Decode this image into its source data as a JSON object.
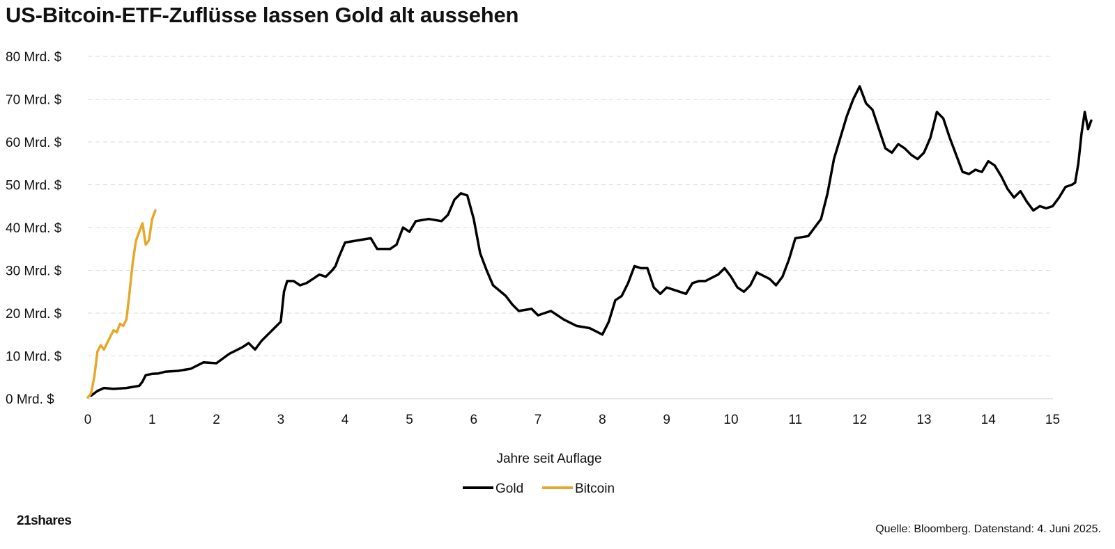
{
  "header": {
    "title": "US-Bitcoin-ETF-Zuflüsse lassen Gold alt aussehen"
  },
  "footer": {
    "logo_text": "21shares",
    "source": "Quelle: Bloomberg. Datenstand: 4. Juni 2025."
  },
  "chart_data": {
    "type": "line",
    "xlabel": "Jahre seit Auflage",
    "ylabel": "",
    "xlim": [
      0,
      15.4
    ],
    "ylim": [
      0,
      80
    ],
    "x_ticks": [
      0,
      1,
      2,
      3,
      4,
      5,
      6,
      7,
      8,
      9,
      10,
      11,
      12,
      13,
      14,
      15
    ],
    "y_ticks": [
      0,
      10,
      20,
      30,
      40,
      50,
      60,
      70,
      80
    ],
    "y_tick_labels": [
      "0 Mrd. $",
      "10 Mrd. $",
      "20 Mrd. $",
      "30 Mrd. $",
      "40 Mrd. $",
      "50 Mrd. $",
      "60 Mrd. $",
      "70 Mrd. $",
      "80 Mrd. $"
    ],
    "grid": "horizontal dashed",
    "legend_position": "bottom-center",
    "series": [
      {
        "name": "Gold",
        "color": "#000000",
        "points": [
          [
            0.05,
            0.7
          ],
          [
            0.15,
            1.8
          ],
          [
            0.25,
            2.5
          ],
          [
            0.4,
            2.3
          ],
          [
            0.6,
            2.5
          ],
          [
            0.8,
            3.0
          ],
          [
            0.85,
            4.0
          ],
          [
            0.9,
            5.5
          ],
          [
            1.0,
            5.8
          ],
          [
            1.1,
            5.9
          ],
          [
            1.2,
            6.3
          ],
          [
            1.4,
            6.5
          ],
          [
            1.6,
            7.0
          ],
          [
            1.8,
            8.5
          ],
          [
            2.0,
            8.3
          ],
          [
            2.2,
            10.5
          ],
          [
            2.4,
            12.0
          ],
          [
            2.5,
            13.0
          ],
          [
            2.6,
            11.5
          ],
          [
            2.7,
            13.5
          ],
          [
            2.8,
            15.0
          ],
          [
            2.9,
            16.5
          ],
          [
            3.0,
            18.0
          ],
          [
            3.05,
            25.0
          ],
          [
            3.1,
            27.5
          ],
          [
            3.2,
            27.5
          ],
          [
            3.3,
            26.5
          ],
          [
            3.4,
            27.0
          ],
          [
            3.5,
            28.0
          ],
          [
            3.6,
            29.0
          ],
          [
            3.7,
            28.5
          ],
          [
            3.8,
            30.0
          ],
          [
            3.85,
            31.0
          ],
          [
            3.9,
            33.0
          ],
          [
            4.0,
            36.5
          ],
          [
            4.2,
            37.0
          ],
          [
            4.4,
            37.5
          ],
          [
            4.5,
            35.0
          ],
          [
            4.7,
            35.0
          ],
          [
            4.8,
            36.0
          ],
          [
            4.9,
            40.0
          ],
          [
            5.0,
            39.0
          ],
          [
            5.1,
            41.5
          ],
          [
            5.3,
            42.0
          ],
          [
            5.5,
            41.5
          ],
          [
            5.6,
            43.0
          ],
          [
            5.7,
            46.5
          ],
          [
            5.8,
            48.0
          ],
          [
            5.9,
            47.5
          ],
          [
            6.0,
            42.0
          ],
          [
            6.1,
            34.0
          ],
          [
            6.2,
            30.0
          ],
          [
            6.3,
            26.5
          ],
          [
            6.5,
            24.0
          ],
          [
            6.6,
            22.0
          ],
          [
            6.7,
            20.5
          ],
          [
            6.9,
            21.0
          ],
          [
            7.0,
            19.5
          ],
          [
            7.2,
            20.5
          ],
          [
            7.4,
            18.5
          ],
          [
            7.6,
            17.0
          ],
          [
            7.8,
            16.5
          ],
          [
            8.0,
            15.0
          ],
          [
            8.1,
            18.0
          ],
          [
            8.2,
            23.0
          ],
          [
            8.3,
            24.0
          ],
          [
            8.4,
            27.0
          ],
          [
            8.5,
            31.0
          ],
          [
            8.6,
            30.5
          ],
          [
            8.7,
            30.5
          ],
          [
            8.8,
            26.0
          ],
          [
            8.9,
            24.5
          ],
          [
            9.0,
            26.0
          ],
          [
            9.1,
            25.5
          ],
          [
            9.3,
            24.5
          ],
          [
            9.4,
            27.0
          ],
          [
            9.5,
            27.5
          ],
          [
            9.6,
            27.5
          ],
          [
            9.8,
            29.0
          ],
          [
            9.9,
            30.5
          ],
          [
            10.0,
            28.5
          ],
          [
            10.1,
            26.0
          ],
          [
            10.2,
            25.0
          ],
          [
            10.3,
            26.5
          ],
          [
            10.4,
            29.5
          ],
          [
            10.6,
            28.0
          ],
          [
            10.7,
            26.5
          ],
          [
            10.8,
            28.5
          ],
          [
            10.9,
            32.5
          ],
          [
            11.0,
            37.5
          ],
          [
            11.2,
            38.0
          ],
          [
            11.4,
            42.0
          ],
          [
            11.5,
            48.0
          ],
          [
            11.6,
            56.0
          ],
          [
            11.8,
            66.0
          ],
          [
            11.9,
            70.0
          ],
          [
            12.0,
            73.0
          ],
          [
            12.1,
            69.0
          ],
          [
            12.2,
            67.5
          ],
          [
            12.3,
            63.0
          ],
          [
            12.4,
            58.5
          ],
          [
            12.5,
            57.5
          ],
          [
            12.6,
            59.5
          ],
          [
            12.7,
            58.5
          ],
          [
            12.8,
            57.0
          ],
          [
            12.9,
            56.0
          ],
          [
            13.0,
            57.5
          ],
          [
            13.1,
            61.0
          ],
          [
            13.2,
            67.0
          ],
          [
            13.3,
            65.5
          ],
          [
            13.4,
            61.0
          ],
          [
            13.5,
            57.0
          ],
          [
            13.6,
            53.0
          ],
          [
            13.7,
            52.5
          ],
          [
            13.8,
            53.5
          ],
          [
            13.9,
            53.0
          ],
          [
            14.0,
            55.5
          ],
          [
            14.1,
            54.5
          ],
          [
            14.2,
            52.0
          ],
          [
            14.3,
            49.0
          ],
          [
            14.4,
            47.0
          ],
          [
            14.5,
            48.5
          ],
          [
            14.6,
            46.0
          ],
          [
            14.7,
            44.0
          ],
          [
            14.8,
            45.0
          ],
          [
            14.9,
            44.5
          ],
          [
            15.0,
            45.0
          ],
          [
            15.1,
            47.0
          ],
          [
            15.2,
            49.5
          ],
          [
            15.3,
            50.0
          ],
          [
            15.35,
            50.5
          ],
          [
            15.4,
            55.0
          ],
          [
            15.45,
            62.0
          ],
          [
            15.5,
            67.0
          ],
          [
            15.55,
            63.0
          ],
          [
            15.6,
            65.0
          ]
        ]
      },
      {
        "name": "Bitcoin",
        "color": "#e6a82a",
        "points": [
          [
            0.0,
            0.3
          ],
          [
            0.05,
            1.2
          ],
          [
            0.1,
            5.0
          ],
          [
            0.15,
            11.0
          ],
          [
            0.2,
            12.5
          ],
          [
            0.25,
            11.5
          ],
          [
            0.3,
            13.0
          ],
          [
            0.35,
            14.5
          ],
          [
            0.4,
            16.0
          ],
          [
            0.45,
            15.5
          ],
          [
            0.5,
            17.5
          ],
          [
            0.55,
            17.0
          ],
          [
            0.6,
            18.5
          ],
          [
            0.65,
            25.0
          ],
          [
            0.7,
            32.0
          ],
          [
            0.75,
            37.0
          ],
          [
            0.8,
            39.0
          ],
          [
            0.85,
            41.0
          ],
          [
            0.9,
            36.0
          ],
          [
            0.95,
            37.0
          ],
          [
            1.0,
            42.0
          ],
          [
            1.05,
            44.0
          ]
        ]
      }
    ]
  }
}
